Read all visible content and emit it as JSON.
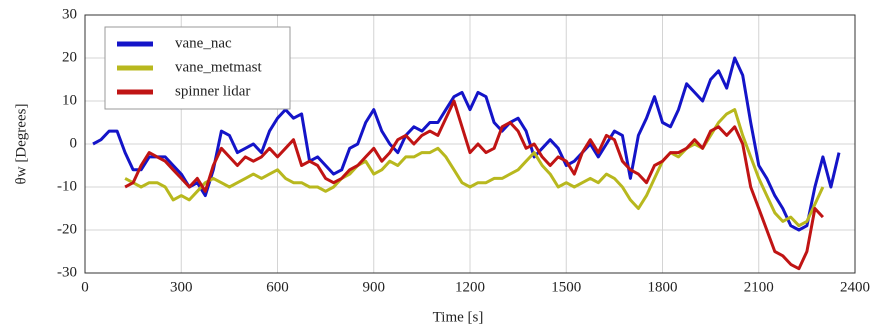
{
  "chart_data": {
    "type": "line",
    "xlabel": "Time [s]",
    "ylabel": "θw [Degrees]",
    "x": [
      25,
      50,
      75,
      100,
      125,
      150,
      175,
      200,
      225,
      250,
      275,
      300,
      325,
      350,
      375,
      400,
      425,
      450,
      475,
      500,
      525,
      550,
      575,
      600,
      625,
      650,
      675,
      700,
      725,
      750,
      775,
      800,
      825,
      850,
      875,
      900,
      925,
      950,
      975,
      1000,
      1025,
      1050,
      1075,
      1100,
      1125,
      1150,
      1175,
      1200,
      1225,
      1250,
      1275,
      1300,
      1325,
      1350,
      1375,
      1400,
      1425,
      1450,
      1475,
      1500,
      1525,
      1550,
      1575,
      1600,
      1625,
      1650,
      1675,
      1700,
      1725,
      1750,
      1775,
      1800,
      1825,
      1850,
      1875,
      1900,
      1925,
      1950,
      1975,
      2000,
      2025,
      2050,
      2075,
      2100,
      2125,
      2150,
      2175,
      2200,
      2225,
      2250,
      2275,
      2300,
      2325,
      2350
    ],
    "series": [
      {
        "name": "vane_nac",
        "color": "#1414c8",
        "values": [
          0,
          1,
          3,
          3,
          -2,
          -6,
          -6,
          -3,
          -3,
          -3,
          -5,
          -7,
          -10,
          -9,
          -12,
          -6,
          3,
          2,
          -2,
          -1,
          0,
          -2,
          3,
          6,
          8,
          6,
          7,
          -4,
          -3,
          -5,
          -7,
          -6,
          -1,
          0,
          5,
          8,
          3,
          0,
          -2,
          2,
          4,
          3,
          5,
          5,
          8,
          11,
          12,
          8,
          12,
          11,
          5,
          3,
          5,
          6,
          3,
          -3,
          -1,
          1,
          -1,
          -5,
          -4,
          -2,
          0,
          -3,
          0,
          3,
          2,
          -8,
          2,
          6,
          11,
          5,
          4,
          8,
          14,
          12,
          10,
          15,
          17,
          13,
          20,
          16,
          5,
          -5,
          -8,
          -12,
          -15,
          -19,
          -20,
          -19,
          -10,
          -3,
          -10,
          -2
        ]
      },
      {
        "name": "vane_metmast",
        "color": "#b8b81e",
        "values": [
          null,
          null,
          null,
          null,
          -8,
          -9,
          -10,
          -9,
          -9,
          -10,
          -13,
          -12,
          -13,
          -11,
          -9,
          -8,
          -9,
          -10,
          -9,
          -8,
          -7,
          -8,
          -7,
          -6,
          -8,
          -9,
          -9,
          -10,
          -10,
          -11,
          -10,
          -8,
          -7,
          -5,
          -4,
          -7,
          -6,
          -4,
          -5,
          -3,
          -3,
          -2,
          -2,
          -1,
          -3,
          -6,
          -9,
          -10,
          -9,
          -9,
          -8,
          -8,
          -7,
          -6,
          -4,
          -2,
          -5,
          -7,
          -10,
          -9,
          -10,
          -9,
          -8,
          -9,
          -7,
          -8,
          -10,
          -13,
          -15,
          -12,
          -8,
          -4,
          -2,
          -3,
          -1,
          0,
          -1,
          2,
          5,
          7,
          8,
          2,
          -3,
          -8,
          -12,
          -16,
          -18,
          -17,
          -19,
          -18,
          -14,
          -10,
          null,
          null
        ]
      },
      {
        "name": "spinner lidar",
        "color": "#c01414",
        "values": [
          null,
          null,
          null,
          null,
          -10,
          -9,
          -5,
          -2,
          -3,
          -4,
          -6,
          -8,
          -10,
          -8,
          -11,
          -5,
          -1,
          -3,
          -5,
          -3,
          -4,
          -3,
          -1,
          -3,
          -1,
          1,
          -5,
          -4,
          -5,
          -8,
          -9,
          -8,
          -6,
          -5,
          -3,
          -1,
          -4,
          -2,
          1,
          2,
          0,
          2,
          3,
          2,
          6,
          10,
          4,
          -2,
          0,
          -2,
          -1,
          4,
          5,
          3,
          -1,
          0,
          -3,
          -5,
          -3,
          -4,
          -7,
          -2,
          1,
          -2,
          2,
          1,
          -4,
          -6,
          -7,
          -9,
          -5,
          -4,
          -2,
          -2,
          -1,
          1,
          -1,
          3,
          4,
          2,
          4,
          0,
          -10,
          -15,
          -20,
          -25,
          -26,
          -28,
          -29,
          -25,
          -15,
          -17,
          null,
          null
        ]
      }
    ],
    "xlim": [
      0,
      2400
    ],
    "xticks": [
      0,
      300,
      600,
      900,
      1200,
      1500,
      1800,
      2100,
      2400
    ],
    "ylim": [
      -30,
      30
    ],
    "yticks": [
      -30,
      -20,
      -10,
      0,
      10,
      20,
      30
    ],
    "grid": true,
    "legend": "upper left"
  }
}
